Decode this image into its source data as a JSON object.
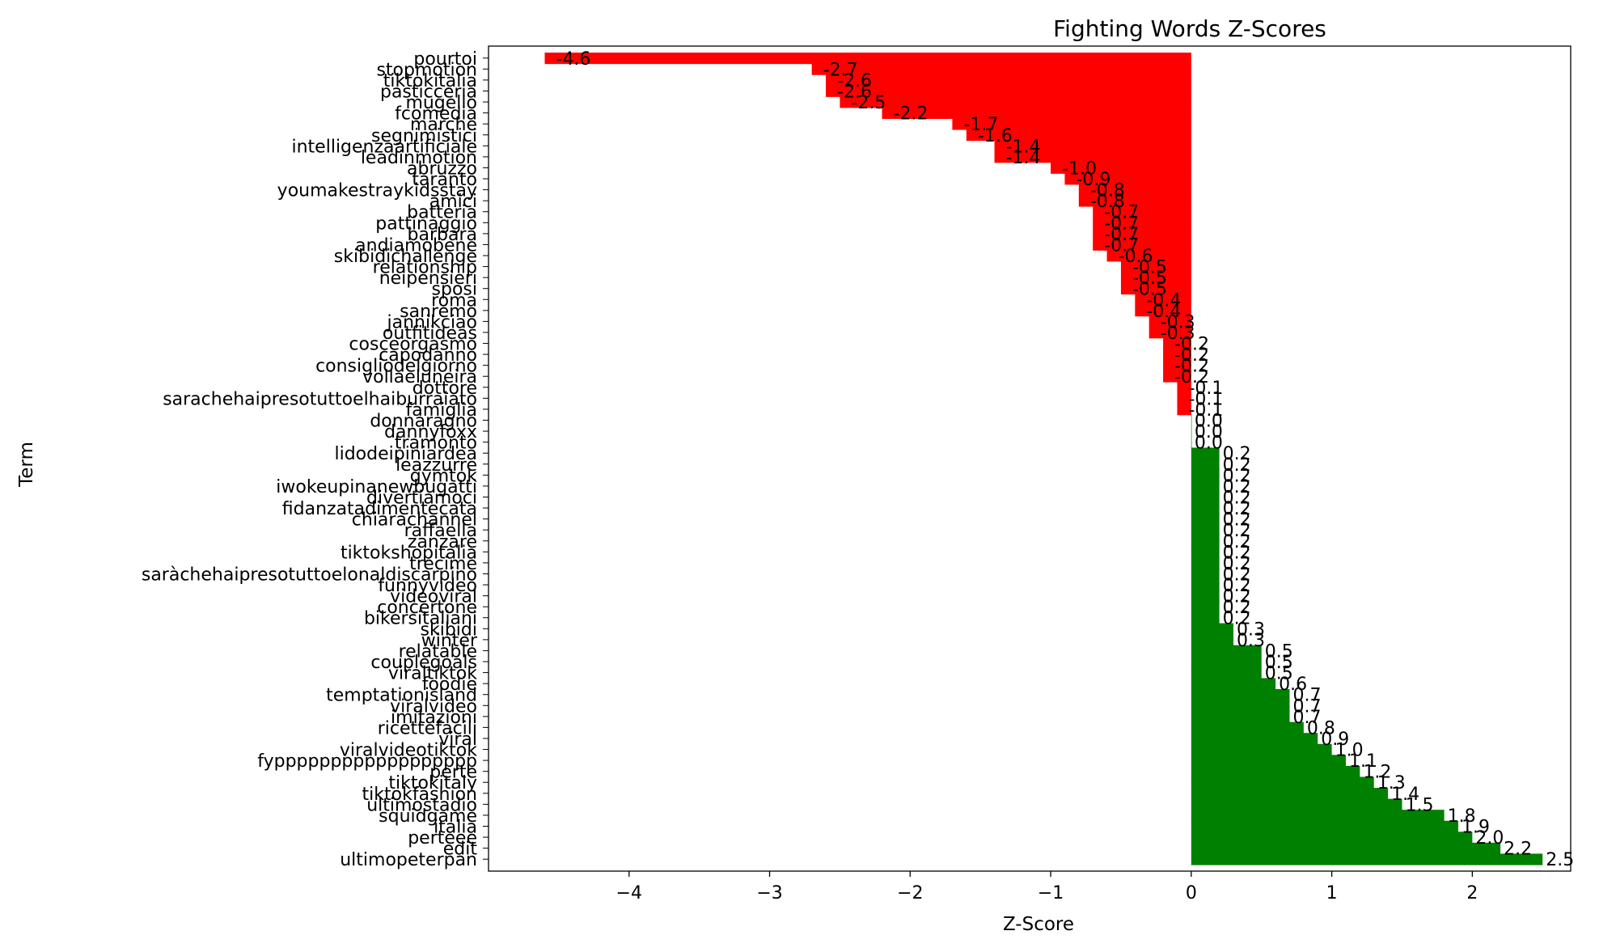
{
  "chart_data": {
    "type": "bar",
    "orientation": "horizontal",
    "title": "Fighting Words Z-Scores",
    "xlabel": "Z-Score",
    "ylabel": "Term",
    "xlim": [
      -5.0,
      2.7
    ],
    "xticks": [
      -4,
      -3,
      -2,
      -1,
      0,
      1,
      2
    ],
    "xtick_labels": [
      "−4",
      "−3",
      "−2",
      "−1",
      "0",
      "1",
      "2"
    ],
    "grid": false,
    "legend": "none",
    "colors": {
      "negative": "#ff0000",
      "positive": "#008000"
    },
    "bars": [
      {
        "term": "pourtoi",
        "value": -4.6,
        "label": "-4.6"
      },
      {
        "term": "stopmotion",
        "value": -2.7,
        "label": "-2.7"
      },
      {
        "term": "tiktokitalia",
        "value": -2.6,
        "label": "-2.6"
      },
      {
        "term": "pasticceria",
        "value": -2.6,
        "label": "-2.6"
      },
      {
        "term": "mugello",
        "value": -2.5,
        "label": "-2.5"
      },
      {
        "term": "fcomedia",
        "value": -2.2,
        "label": "-2.2"
      },
      {
        "term": "marche",
        "value": -1.7,
        "label": "-1.7"
      },
      {
        "term": "segnimistici",
        "value": -1.6,
        "label": "-1.6"
      },
      {
        "term": "intelligenzaartificiale",
        "value": -1.4,
        "label": "-1.4"
      },
      {
        "term": "leadinmotion",
        "value": -1.4,
        "label": "-1.4"
      },
      {
        "term": "abruzzo",
        "value": -1.0,
        "label": "-1.0"
      },
      {
        "term": "taranto",
        "value": -0.9,
        "label": "-0.9"
      },
      {
        "term": "youmakestraykidsstay",
        "value": -0.8,
        "label": "-0.8"
      },
      {
        "term": "amici",
        "value": -0.8,
        "label": "-0.8"
      },
      {
        "term": "batteria",
        "value": -0.7,
        "label": "-0.7"
      },
      {
        "term": "pattinaggio",
        "value": -0.7,
        "label": "-0.7"
      },
      {
        "term": "barbara",
        "value": -0.7,
        "label": "-0.7"
      },
      {
        "term": "andiamobene",
        "value": -0.7,
        "label": "-0.7"
      },
      {
        "term": "skibidichallenge",
        "value": -0.6,
        "label": "-0.6"
      },
      {
        "term": "relationship",
        "value": -0.5,
        "label": "-0.5"
      },
      {
        "term": "neipensieri",
        "value": -0.5,
        "label": "-0.5"
      },
      {
        "term": "sposi",
        "value": -0.5,
        "label": "-0.5"
      },
      {
        "term": "roma",
        "value": -0.4,
        "label": "-0.4"
      },
      {
        "term": "sanremo",
        "value": -0.4,
        "label": "-0.4"
      },
      {
        "term": "jannikciao",
        "value": -0.3,
        "label": "-0.3"
      },
      {
        "term": "outfitideas",
        "value": -0.3,
        "label": "-0.3"
      },
      {
        "term": "cosceorgasmo",
        "value": -0.2,
        "label": "-0.2"
      },
      {
        "term": "capodanno",
        "value": -0.2,
        "label": "-0.2"
      },
      {
        "term": "consigliodelgiorno",
        "value": -0.2,
        "label": "-0.2"
      },
      {
        "term": "vollaeluneira",
        "value": -0.2,
        "label": "-0.2"
      },
      {
        "term": "dottore",
        "value": -0.1,
        "label": "-0.1"
      },
      {
        "term": "sarachehaipresotuttoelhaiburraiato",
        "value": -0.1,
        "label": "-0.1"
      },
      {
        "term": "famiglia",
        "value": -0.1,
        "label": "-0.1"
      },
      {
        "term": "donnaragno",
        "value": 0.0,
        "label": "0.0"
      },
      {
        "term": "dannyfoxx",
        "value": 0.0,
        "label": "0.0"
      },
      {
        "term": "tramonto",
        "value": 0.0,
        "label": "0.0"
      },
      {
        "term": "lidodeipiniardea",
        "value": 0.2,
        "label": "0.2"
      },
      {
        "term": "leazzurre",
        "value": 0.2,
        "label": "0.2"
      },
      {
        "term": "gymtok",
        "value": 0.2,
        "label": "0.2"
      },
      {
        "term": "iwokeupinanewbugatti",
        "value": 0.2,
        "label": "0.2"
      },
      {
        "term": "divertiamoci",
        "value": 0.2,
        "label": "0.2"
      },
      {
        "term": "fidanzatadimentecata",
        "value": 0.2,
        "label": "0.2"
      },
      {
        "term": "chiarachannel",
        "value": 0.2,
        "label": "0.2"
      },
      {
        "term": "raffaella",
        "value": 0.2,
        "label": "0.2"
      },
      {
        "term": "zanzare",
        "value": 0.2,
        "label": "0.2"
      },
      {
        "term": "tiktokshopitalia",
        "value": 0.2,
        "label": "0.2"
      },
      {
        "term": "trecime",
        "value": 0.2,
        "label": "0.2"
      },
      {
        "term": "saràchehaipresotuttoelonaldiscarpino",
        "value": 0.2,
        "label": "0.2"
      },
      {
        "term": "funnyvideo",
        "value": 0.2,
        "label": "0.2"
      },
      {
        "term": "videoviral",
        "value": 0.2,
        "label": "0.2"
      },
      {
        "term": "concertone",
        "value": 0.2,
        "label": "0.2"
      },
      {
        "term": "bikersitaliani",
        "value": 0.2,
        "label": "0.2"
      },
      {
        "term": "skibidi",
        "value": 0.3,
        "label": "0.3"
      },
      {
        "term": "winter",
        "value": 0.3,
        "label": "0.3"
      },
      {
        "term": "relatable",
        "value": 0.5,
        "label": "0.5"
      },
      {
        "term": "couplegoals",
        "value": 0.5,
        "label": "0.5"
      },
      {
        "term": "viraltiktok",
        "value": 0.5,
        "label": "0.5"
      },
      {
        "term": "foodie",
        "value": 0.6,
        "label": "0.6"
      },
      {
        "term": "temptationisland",
        "value": 0.7,
        "label": "0.7"
      },
      {
        "term": "viralvideo",
        "value": 0.7,
        "label": "0.7"
      },
      {
        "term": "imitazioni",
        "value": 0.7,
        "label": "0.7"
      },
      {
        "term": "ricettefacili",
        "value": 0.8,
        "label": "0.8"
      },
      {
        "term": "viral",
        "value": 0.9,
        "label": "0.9"
      },
      {
        "term": "viralvideotiktok",
        "value": 1.0,
        "label": "1.0"
      },
      {
        "term": "fypppppppppppppppppp",
        "value": 1.1,
        "label": "1.1"
      },
      {
        "term": "perte",
        "value": 1.2,
        "label": "1.2"
      },
      {
        "term": "tiktokitaly",
        "value": 1.3,
        "label": "1.3"
      },
      {
        "term": "tiktokfashion",
        "value": 1.4,
        "label": "1.4"
      },
      {
        "term": "ultimostadio",
        "value": 1.5,
        "label": "1.5"
      },
      {
        "term": "squidgame",
        "value": 1.8,
        "label": "1.8"
      },
      {
        "term": "italia",
        "value": 1.9,
        "label": "1.9"
      },
      {
        "term": "perteee",
        "value": 2.0,
        "label": "2.0"
      },
      {
        "term": "edit",
        "value": 2.2,
        "label": "2.2"
      },
      {
        "term": "ultimopeterpan",
        "value": 2.5,
        "label": "2.5"
      }
    ]
  }
}
